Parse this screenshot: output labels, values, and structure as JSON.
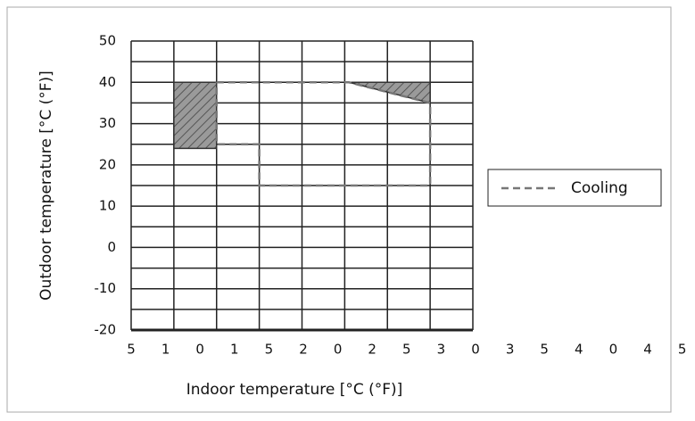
{
  "chart_data": {
    "type": "region",
    "xlabel": "Indoor temperature [°C (°F)]",
    "ylabel": "Outdoor temperature [°C (°F)]",
    "categories": [
      "5",
      "1",
      "0",
      "1",
      "5",
      "2",
      "0",
      "2",
      "5",
      "3",
      "0",
      "3",
      "5",
      "4",
      "0",
      "4",
      "5"
    ],
    "xlim": [
      0,
      8
    ],
    "xgrid": [
      0,
      1,
      2,
      3,
      4,
      5,
      6,
      7,
      8
    ],
    "ylim": [
      -20,
      50
    ],
    "yticks": [
      -20,
      -10,
      0,
      10,
      20,
      30,
      40,
      50
    ],
    "minor_yticks": [
      -15,
      -5,
      5,
      15,
      25,
      35,
      45
    ],
    "series": [
      {
        "name": "Cooling",
        "color": "#777777",
        "dash": true,
        "x": [
          2,
          5.1,
          7,
          7,
          3,
          3,
          2,
          2
        ],
        "y": [
          40,
          40,
          35,
          15,
          15,
          25,
          25,
          40
        ]
      }
    ],
    "hatched_regions": [
      {
        "x": [
          1,
          2,
          2,
          1
        ],
        "y": [
          24,
          24,
          40,
          40
        ]
      },
      {
        "x": [
          5.1,
          7,
          7
        ],
        "y": [
          40,
          40,
          35
        ]
      }
    ],
    "grid": true
  }
}
